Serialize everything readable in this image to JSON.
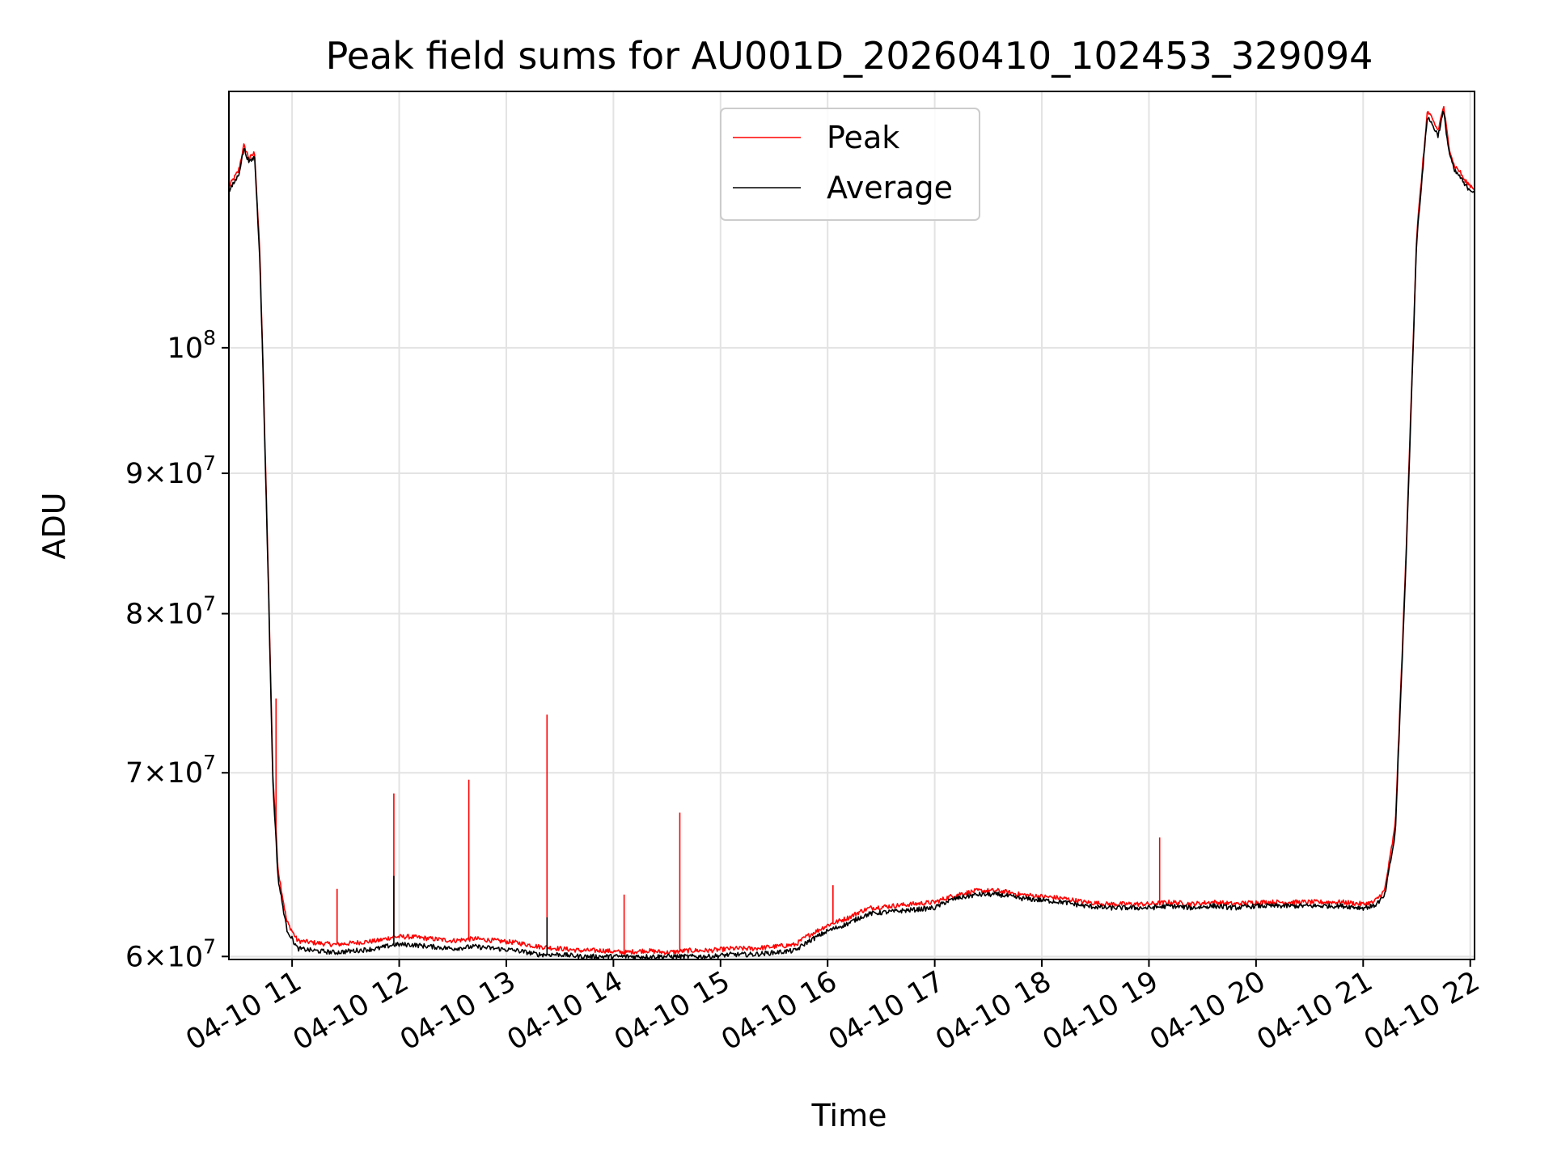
{
  "chart_data": {
    "type": "line",
    "title": "Peak field sums for AU001D_20260410_102453_329094",
    "xlabel": "Time",
    "ylabel": "ADU",
    "yscale": "log",
    "grid": true,
    "legend_position": "top-center",
    "xlim": [
      10.41,
      22.04
    ],
    "ylim": [
      59850000,
      124000000
    ],
    "x_unit": "hours of 2026-04-10",
    "x_ticks": [
      {
        "value": 11,
        "label": "04-10 11"
      },
      {
        "value": 12,
        "label": "04-10 12"
      },
      {
        "value": 13,
        "label": "04-10 13"
      },
      {
        "value": 14,
        "label": "04-10 14"
      },
      {
        "value": 15,
        "label": "04-10 15"
      },
      {
        "value": 16,
        "label": "04-10 16"
      },
      {
        "value": 17,
        "label": "04-10 17"
      },
      {
        "value": 18,
        "label": "04-10 18"
      },
      {
        "value": 19,
        "label": "04-10 19"
      },
      {
        "value": 20,
        "label": "04-10 20"
      },
      {
        "value": 21,
        "label": "04-10 21"
      },
      {
        "value": 22,
        "label": "04-10 22"
      }
    ],
    "y_ticks": [
      {
        "value": 60000000,
        "mant": "6",
        "base": "10",
        "exp": "7"
      },
      {
        "value": 70000000,
        "mant": "7",
        "base": "10",
        "exp": "7"
      },
      {
        "value": 80000000,
        "mant": "8",
        "base": "10",
        "exp": "7"
      },
      {
        "value": 90000000,
        "mant": "9",
        "base": "10",
        "exp": "7"
      },
      {
        "value": 100000000,
        "mant": "",
        "base": "10",
        "exp": "8"
      }
    ],
    "series": [
      {
        "name": "Peak",
        "color": "#ff0000",
        "x": [
          10.41,
          10.5,
          10.55,
          10.6,
          10.65,
          10.7,
          10.73,
          10.78,
          10.82,
          10.87,
          10.95,
          11.05,
          11.2,
          11.4,
          11.6,
          11.8,
          11.95,
          12.1,
          12.3,
          12.5,
          12.7,
          12.9,
          13.1,
          13.3,
          13.5,
          13.7,
          13.9,
          14.1,
          14.3,
          14.5,
          14.7,
          14.9,
          15.1,
          15.3,
          15.5,
          15.7,
          15.8,
          15.9,
          16.0,
          16.1,
          16.2,
          16.3,
          16.4,
          16.6,
          16.8,
          17.0,
          17.1,
          17.2,
          17.4,
          17.6,
          17.8,
          18.0,
          18.2,
          18.4,
          18.6,
          18.8,
          19.0,
          19.2,
          19.4,
          19.6,
          19.8,
          20.0,
          20.2,
          20.4,
          20.6,
          20.8,
          21.0,
          21.1,
          21.2,
          21.3,
          21.4,
          21.5,
          21.6,
          21.7,
          21.75,
          21.8,
          21.85,
          21.9,
          21.95,
          22.0,
          22.04
        ],
        "y": [
          114500000,
          116000000,
          118500000,
          117200000,
          117800000,
          108000000,
          98000000,
          82000000,
          70000000,
          64500000,
          61800000,
          60800000,
          60700000,
          60600000,
          60700000,
          60800000,
          61000000,
          61000000,
          60900000,
          60800000,
          60900000,
          60800000,
          60700000,
          60500000,
          60400000,
          60300000,
          60300000,
          60200000,
          60300000,
          60200000,
          60300000,
          60300000,
          60400000,
          60400000,
          60500000,
          60600000,
          61000000,
          61300000,
          61600000,
          61800000,
          62000000,
          62300000,
          62500000,
          62600000,
          62700000,
          62800000,
          63000000,
          63200000,
          63400000,
          63400000,
          63200000,
          63100000,
          63000000,
          62800000,
          62700000,
          62700000,
          62700000,
          62800000,
          62700000,
          62800000,
          62700000,
          62800000,
          62800000,
          62800000,
          62800000,
          62800000,
          62700000,
          62800000,
          63400000,
          67000000,
          84000000,
          110000000,
          122000000,
          120000000,
          122500000,
          118500000,
          116500000,
          116000000,
          115000000,
          114600000,
          114300000
        ],
        "spikes": [
          [
            10.85,
            74500000
          ],
          [
            11.42,
            63500000
          ],
          [
            11.95,
            68800000
          ],
          [
            12.65,
            69600000
          ],
          [
            13.38,
            73500000
          ],
          [
            14.1,
            63200000
          ],
          [
            14.62,
            67700000
          ],
          [
            16.05,
            63700000
          ],
          [
            19.1,
            66300000
          ]
        ]
      },
      {
        "name": "Average",
        "color": "#000000",
        "x": [
          10.41,
          10.5,
          10.55,
          10.6,
          10.65,
          10.7,
          10.73,
          10.78,
          10.82,
          10.87,
          10.95,
          11.05,
          11.2,
          11.4,
          11.6,
          11.8,
          11.95,
          12.1,
          12.3,
          12.5,
          12.7,
          12.9,
          13.1,
          13.3,
          13.5,
          13.7,
          13.9,
          14.1,
          14.3,
          14.5,
          14.7,
          14.9,
          15.1,
          15.3,
          15.5,
          15.7,
          15.8,
          15.9,
          16.0,
          16.1,
          16.2,
          16.3,
          16.4,
          16.6,
          16.8,
          17.0,
          17.1,
          17.2,
          17.4,
          17.6,
          17.8,
          18.0,
          18.2,
          18.4,
          18.6,
          18.8,
          19.0,
          19.2,
          19.4,
          19.6,
          19.8,
          20.0,
          20.2,
          20.4,
          20.6,
          20.8,
          21.0,
          21.1,
          21.2,
          21.3,
          21.4,
          21.5,
          21.6,
          21.7,
          21.75,
          21.8,
          21.85,
          21.9,
          21.95,
          22.0,
          22.04
        ],
        "y": [
          114000000,
          115600000,
          118200000,
          116800000,
          117400000,
          107500000,
          97500000,
          81500000,
          69500000,
          64000000,
          61400000,
          60400000,
          60300000,
          60200000,
          60300000,
          60400000,
          60600000,
          60600000,
          60500000,
          60400000,
          60500000,
          60400000,
          60300000,
          60100000,
          60100000,
          60000000,
          60000000,
          60000000,
          60000000,
          60000000,
          60000000,
          60000000,
          60100000,
          60100000,
          60200000,
          60300000,
          60700000,
          61000000,
          61300000,
          61500000,
          61700000,
          62000000,
          62200000,
          62300000,
          62400000,
          62500000,
          62800000,
          63000000,
          63200000,
          63200000,
          63000000,
          62900000,
          62800000,
          62600000,
          62500000,
          62500000,
          62500000,
          62600000,
          62500000,
          62600000,
          62500000,
          62600000,
          62600000,
          62600000,
          62600000,
          62600000,
          62500000,
          62600000,
          63100000,
          66500000,
          83500000,
          109500000,
          121500000,
          119500000,
          122000000,
          118000000,
          116000000,
          115500000,
          114600000,
          114200000,
          114000000
        ],
        "spikes": [
          [
            11.95,
            64200000
          ],
          [
            13.38,
            62000000
          ]
        ]
      }
    ]
  }
}
